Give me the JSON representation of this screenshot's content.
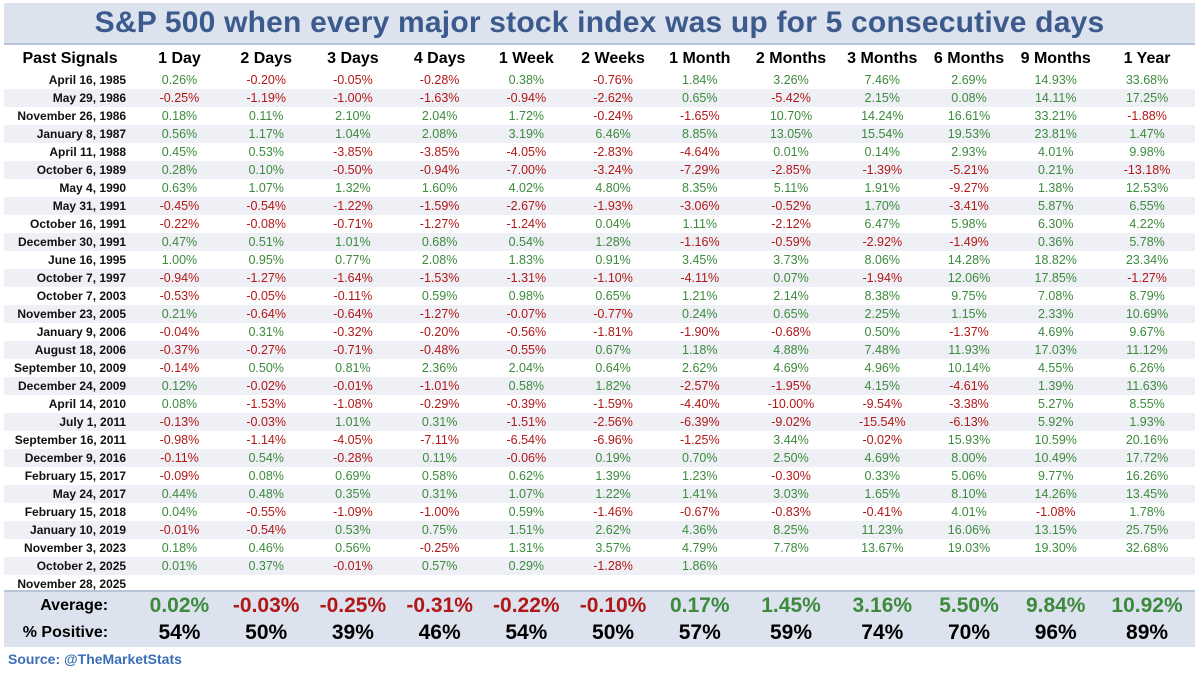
{
  "chart_data": {
    "type": "table",
    "title": "S&P 500 when every major stock index was up for 5 consecutive days",
    "row_header": "Past Signals",
    "columns": [
      "1 Day",
      "2 Days",
      "3 Days",
      "4 Days",
      "1 Week",
      "2 Weeks",
      "1 Month",
      "2 Months",
      "3 Months",
      "6 Months",
      "9 Months",
      "1 Year"
    ],
    "rows": [
      {
        "date": "April 16, 1985",
        "values": [
          "0.26%",
          "-0.20%",
          "-0.05%",
          "-0.28%",
          "0.38%",
          "-0.76%",
          "1.84%",
          "3.26%",
          "7.46%",
          "2.69%",
          "14.93%",
          "33.68%"
        ]
      },
      {
        "date": "May 29, 1986",
        "values": [
          "-0.25%",
          "-1.19%",
          "-1.00%",
          "-1.63%",
          "-0.94%",
          "-2.62%",
          "0.65%",
          "-5.42%",
          "2.15%",
          "0.08%",
          "14.11%",
          "17.25%"
        ]
      },
      {
        "date": "November 26, 1986",
        "values": [
          "0.18%",
          "0.11%",
          "2.10%",
          "2.04%",
          "1.72%",
          "-0.24%",
          "-1.65%",
          "10.70%",
          "14.24%",
          "16.61%",
          "33.21%",
          "-1.88%"
        ]
      },
      {
        "date": "January 8, 1987",
        "values": [
          "0.56%",
          "1.17%",
          "1.04%",
          "2.08%",
          "3.19%",
          "6.46%",
          "8.85%",
          "13.05%",
          "15.54%",
          "19.53%",
          "23.81%",
          "1.47%"
        ]
      },
      {
        "date": "April 11, 1988",
        "values": [
          "0.45%",
          "0.53%",
          "-3.85%",
          "-3.85%",
          "-4.05%",
          "-2.83%",
          "-4.64%",
          "0.01%",
          "0.14%",
          "2.93%",
          "4.01%",
          "9.98%"
        ]
      },
      {
        "date": "October 6, 1989",
        "values": [
          "0.28%",
          "0.10%",
          "-0.50%",
          "-0.94%",
          "-7.00%",
          "-3.24%",
          "-7.29%",
          "-2.85%",
          "-1.39%",
          "-5.21%",
          "0.21%",
          "-13.18%"
        ]
      },
      {
        "date": "May 4, 1990",
        "values": [
          "0.63%",
          "1.07%",
          "1.32%",
          "1.60%",
          "4.02%",
          "4.80%",
          "8.35%",
          "5.11%",
          "1.91%",
          "-9.27%",
          "1.38%",
          "12.53%"
        ]
      },
      {
        "date": "May 31, 1991",
        "values": [
          "-0.45%",
          "-0.54%",
          "-1.22%",
          "-1.59%",
          "-2.67%",
          "-1.93%",
          "-3.06%",
          "-0.52%",
          "1.70%",
          "-3.41%",
          "5.87%",
          "6.55%"
        ]
      },
      {
        "date": "October 16, 1991",
        "values": [
          "-0.22%",
          "-0.08%",
          "-0.71%",
          "-1.27%",
          "-1.24%",
          "0.04%",
          "1.11%",
          "-2.12%",
          "6.47%",
          "5.98%",
          "6.30%",
          "4.22%"
        ]
      },
      {
        "date": "December 30, 1991",
        "values": [
          "0.47%",
          "0.51%",
          "1.01%",
          "0.68%",
          "0.54%",
          "1.28%",
          "-1.16%",
          "-0.59%",
          "-2.92%",
          "-1.49%",
          "0.36%",
          "5.78%"
        ]
      },
      {
        "date": "June 16, 1995",
        "values": [
          "1.00%",
          "0.95%",
          "0.77%",
          "2.08%",
          "1.83%",
          "0.91%",
          "3.45%",
          "3.73%",
          "8.06%",
          "14.28%",
          "18.82%",
          "23.34%"
        ]
      },
      {
        "date": "October 7, 1997",
        "values": [
          "-0.94%",
          "-1.27%",
          "-1.64%",
          "-1.53%",
          "-1.31%",
          "-1.10%",
          "-4.11%",
          "0.07%",
          "-1.94%",
          "12.06%",
          "17.85%",
          "-1.27%"
        ]
      },
      {
        "date": "October 7, 2003",
        "values": [
          "-0.53%",
          "-0.05%",
          "-0.11%",
          "0.59%",
          "0.98%",
          "0.65%",
          "1.21%",
          "2.14%",
          "8.38%",
          "9.75%",
          "7.08%",
          "8.79%"
        ]
      },
      {
        "date": "November 23, 2005",
        "values": [
          "0.21%",
          "-0.64%",
          "-0.64%",
          "-1.27%",
          "-0.07%",
          "-0.77%",
          "0.24%",
          "0.65%",
          "2.25%",
          "1.15%",
          "2.33%",
          "10.69%"
        ]
      },
      {
        "date": "January 9, 2006",
        "values": [
          "-0.04%",
          "0.31%",
          "-0.32%",
          "-0.20%",
          "-0.56%",
          "-1.81%",
          "-1.90%",
          "-0.68%",
          "0.50%",
          "-1.37%",
          "4.69%",
          "9.67%"
        ]
      },
      {
        "date": "August 18, 2006",
        "values": [
          "-0.37%",
          "-0.27%",
          "-0.71%",
          "-0.48%",
          "-0.55%",
          "0.67%",
          "1.18%",
          "4.88%",
          "7.48%",
          "11.93%",
          "17.03%",
          "11.12%"
        ]
      },
      {
        "date": "September 10, 2009",
        "values": [
          "-0.14%",
          "0.50%",
          "0.81%",
          "2.36%",
          "2.04%",
          "0.64%",
          "2.62%",
          "4.69%",
          "4.96%",
          "10.14%",
          "4.55%",
          "6.26%"
        ]
      },
      {
        "date": "December 24, 2009",
        "values": [
          "0.12%",
          "-0.02%",
          "-0.01%",
          "-1.01%",
          "0.58%",
          "1.82%",
          "-2.57%",
          "-1.95%",
          "4.15%",
          "-4.61%",
          "1.39%",
          "11.63%"
        ]
      },
      {
        "date": "April 14, 2010",
        "values": [
          "0.08%",
          "-1.53%",
          "-1.08%",
          "-0.29%",
          "-0.39%",
          "-1.59%",
          "-4.40%",
          "-10.00%",
          "-9.54%",
          "-3.38%",
          "5.27%",
          "8.55%"
        ]
      },
      {
        "date": "July 1, 2011",
        "values": [
          "-0.13%",
          "-0.03%",
          "1.01%",
          "0.31%",
          "-1.51%",
          "-2.56%",
          "-6.39%",
          "-9.02%",
          "-15.54%",
          "-6.13%",
          "5.92%",
          "1.93%"
        ]
      },
      {
        "date": "September 16, 2011",
        "values": [
          "-0.98%",
          "-1.14%",
          "-4.05%",
          "-7.11%",
          "-6.54%",
          "-6.96%",
          "-1.25%",
          "3.44%",
          "-0.02%",
          "15.93%",
          "10.59%",
          "20.16%"
        ]
      },
      {
        "date": "December 9, 2016",
        "values": [
          "-0.11%",
          "0.54%",
          "-0.28%",
          "0.11%",
          "-0.06%",
          "0.19%",
          "0.70%",
          "2.50%",
          "4.69%",
          "8.00%",
          "10.49%",
          "17.72%"
        ]
      },
      {
        "date": "February 15, 2017",
        "values": [
          "-0.09%",
          "0.08%",
          "0.69%",
          "0.58%",
          "0.62%",
          "1.39%",
          "1.23%",
          "-0.30%",
          "0.33%",
          "5.06%",
          "9.77%",
          "16.26%"
        ]
      },
      {
        "date": "May 24, 2017",
        "values": [
          "0.44%",
          "0.48%",
          "0.35%",
          "0.31%",
          "1.07%",
          "1.22%",
          "1.41%",
          "3.03%",
          "1.65%",
          "8.10%",
          "14.26%",
          "13.45%"
        ]
      },
      {
        "date": "February 15, 2018",
        "values": [
          "0.04%",
          "-0.55%",
          "-1.09%",
          "-1.00%",
          "0.59%",
          "-1.46%",
          "-0.67%",
          "-0.83%",
          "-0.41%",
          "4.01%",
          "-1.08%",
          "1.78%"
        ]
      },
      {
        "date": "January 10, 2019",
        "values": [
          "-0.01%",
          "-0.54%",
          "0.53%",
          "0.75%",
          "1.51%",
          "2.62%",
          "4.36%",
          "8.25%",
          "11.23%",
          "16.06%",
          "13.15%",
          "25.75%"
        ]
      },
      {
        "date": "November 3, 2023",
        "values": [
          "0.18%",
          "0.46%",
          "0.56%",
          "-0.25%",
          "1.31%",
          "3.57%",
          "4.79%",
          "7.78%",
          "13.67%",
          "19.03%",
          "19.30%",
          "32.68%"
        ]
      },
      {
        "date": "October 2, 2025",
        "values": [
          "0.01%",
          "0.37%",
          "-0.01%",
          "0.57%",
          "0.29%",
          "-1.28%",
          "1.86%",
          "",
          "",
          "",
          "",
          ""
        ]
      },
      {
        "date": "November 28, 2025",
        "values": [
          "",
          "",
          "",
          "",
          "",
          "",
          "",
          "",
          "",
          "",
          "",
          ""
        ]
      }
    ],
    "summary": {
      "average_label": "Average:",
      "average": [
        "0.02%",
        "-0.03%",
        "-0.25%",
        "-0.31%",
        "-0.22%",
        "-0.10%",
        "0.17%",
        "1.45%",
        "3.16%",
        "5.50%",
        "9.84%",
        "10.92%"
      ],
      "positive_label": "% Positive:",
      "positive": [
        "54%",
        "50%",
        "39%",
        "46%",
        "54%",
        "50%",
        "57%",
        "59%",
        "74%",
        "70%",
        "96%",
        "89%"
      ]
    },
    "colors": {
      "positive": "#3d8a3d",
      "negative": "#b11717",
      "title": "#3c5a8c",
      "band": "#dce3ee"
    }
  },
  "source": "Source: @TheMarketStats"
}
